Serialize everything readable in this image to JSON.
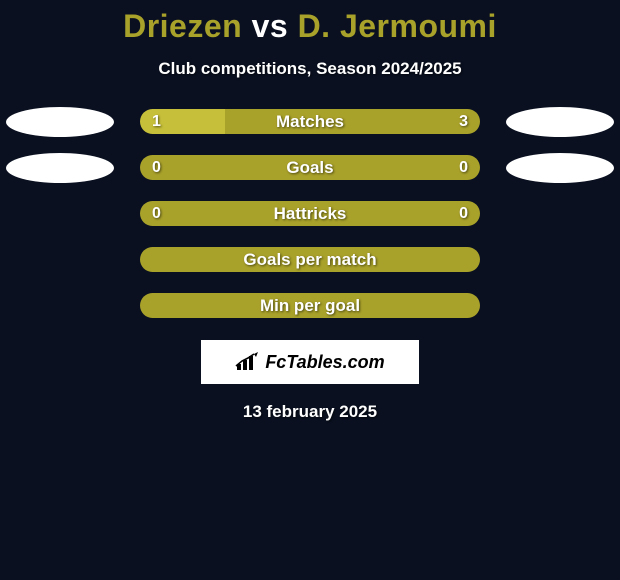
{
  "background_color": "#0a1020",
  "title": {
    "player1": "Driezen",
    "vs": " vs ",
    "player2": "D. Jermoumi",
    "player1_color": "#a8a12a",
    "vs_color": "#ffffff",
    "player2_color": "#a8a12a",
    "fontsize": 32,
    "fontweight": 900
  },
  "subtitle": {
    "text": "Club competitions, Season 2024/2025",
    "fontsize": 17,
    "color": "#ffffff"
  },
  "bar_styling": {
    "outer_width": 340,
    "outer_height": 25,
    "border_radius": 13,
    "fontsize": 17,
    "label_color": "#ffffff",
    "text_shadow": "1px 1px 2px rgba(0,0,0,0.55)"
  },
  "oval_styling": {
    "width": 108,
    "height": 30,
    "color": "#ffffff"
  },
  "stats": [
    {
      "label": "Matches",
      "left_value": "1",
      "right_value": "3",
      "left_pct": 25,
      "right_pct": 75,
      "left_color": "#c6bf3a",
      "right_color": "#a8a12a",
      "show_left_oval": true,
      "show_right_oval": true
    },
    {
      "label": "Goals",
      "left_value": "0",
      "right_value": "0",
      "left_pct": 50,
      "right_pct": 50,
      "left_color": "#a8a12a",
      "right_color": "#a8a12a",
      "show_left_oval": true,
      "show_right_oval": true
    },
    {
      "label": "Hattricks",
      "left_value": "0",
      "right_value": "0",
      "left_pct": 50,
      "right_pct": 50,
      "left_color": "#a8a12a",
      "right_color": "#a8a12a",
      "show_left_oval": false,
      "show_right_oval": false
    },
    {
      "label": "Goals per match",
      "left_value": "",
      "right_value": "",
      "left_pct": 50,
      "right_pct": 50,
      "left_color": "#a8a12a",
      "right_color": "#a8a12a",
      "show_left_oval": false,
      "show_right_oval": false
    },
    {
      "label": "Min per goal",
      "left_value": "",
      "right_value": "",
      "left_pct": 50,
      "right_pct": 50,
      "left_color": "#a8a12a",
      "right_color": "#a8a12a",
      "show_left_oval": false,
      "show_right_oval": false
    }
  ],
  "logo": {
    "text": "FcTables.com",
    "box_bg": "#ffffff",
    "text_color": "#000000",
    "fontsize": 18,
    "icon_color": "#000000"
  },
  "date": {
    "text": "13 february 2025",
    "fontsize": 17,
    "color": "#ffffff"
  }
}
